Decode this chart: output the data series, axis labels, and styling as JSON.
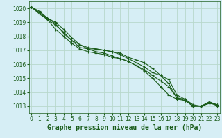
{
  "title": "Graphe pression niveau de la mer (hPa)",
  "ylim": [
    1012.5,
    1020.5
  ],
  "yticks": [
    1013,
    1014,
    1015,
    1016,
    1017,
    1018,
    1019,
    1020
  ],
  "xticks": [
    0,
    1,
    2,
    3,
    4,
    5,
    6,
    7,
    8,
    9,
    10,
    11,
    12,
    13,
    14,
    15,
    16,
    17,
    18,
    19,
    20,
    21,
    22,
    23
  ],
  "bg_color": "#d6eef5",
  "grid_color": "#b8d8cc",
  "line_color": "#1a5c1a",
  "marker": "+",
  "series": [
    [
      1020.1,
      1019.7,
      1019.3,
      1018.9,
      1018.2,
      1017.7,
      1017.4,
      1017.1,
      1017.1,
      1017.0,
      1016.9,
      1016.8,
      1016.5,
      1016.3,
      1016.1,
      1015.7,
      1015.2,
      1014.6,
      1013.6,
      1013.5,
      1013.0,
      1013.0,
      1013.3,
      1013.1
    ],
    [
      1020.1,
      1019.6,
      1019.2,
      1018.5,
      1018.0,
      1017.5,
      1017.1,
      1016.9,
      1016.8,
      1016.7,
      1016.5,
      1016.4,
      1016.2,
      1015.9,
      1015.5,
      1015.0,
      1014.4,
      1013.8,
      1013.5,
      1013.4,
      1013.0,
      1013.0,
      1013.2,
      1013.1
    ],
    [
      1020.1,
      1019.8,
      1019.3,
      1019.0,
      1018.5,
      1017.9,
      1017.4,
      1017.2,
      1017.1,
      1017.0,
      1016.9,
      1016.7,
      1016.4,
      1016.1,
      1015.8,
      1015.4,
      1015.2,
      1014.9,
      1013.8,
      1013.5,
      1013.1,
      1013.0,
      1013.3,
      1013.0
    ],
    [
      1020.1,
      1019.7,
      1019.2,
      1018.8,
      1018.3,
      1017.7,
      1017.2,
      1017.1,
      1016.9,
      1016.8,
      1016.6,
      1016.4,
      1016.2,
      1015.9,
      1015.6,
      1015.2,
      1014.8,
      1014.4,
      1013.6,
      1013.4,
      1013.0,
      1013.0,
      1013.2,
      1013.1
    ]
  ],
  "font_color": "#1a5c1a",
  "title_fontsize": 7,
  "tick_fontsize": 5.5,
  "linewidth": 0.8,
  "markersize": 3,
  "markeredgewidth": 0.8
}
